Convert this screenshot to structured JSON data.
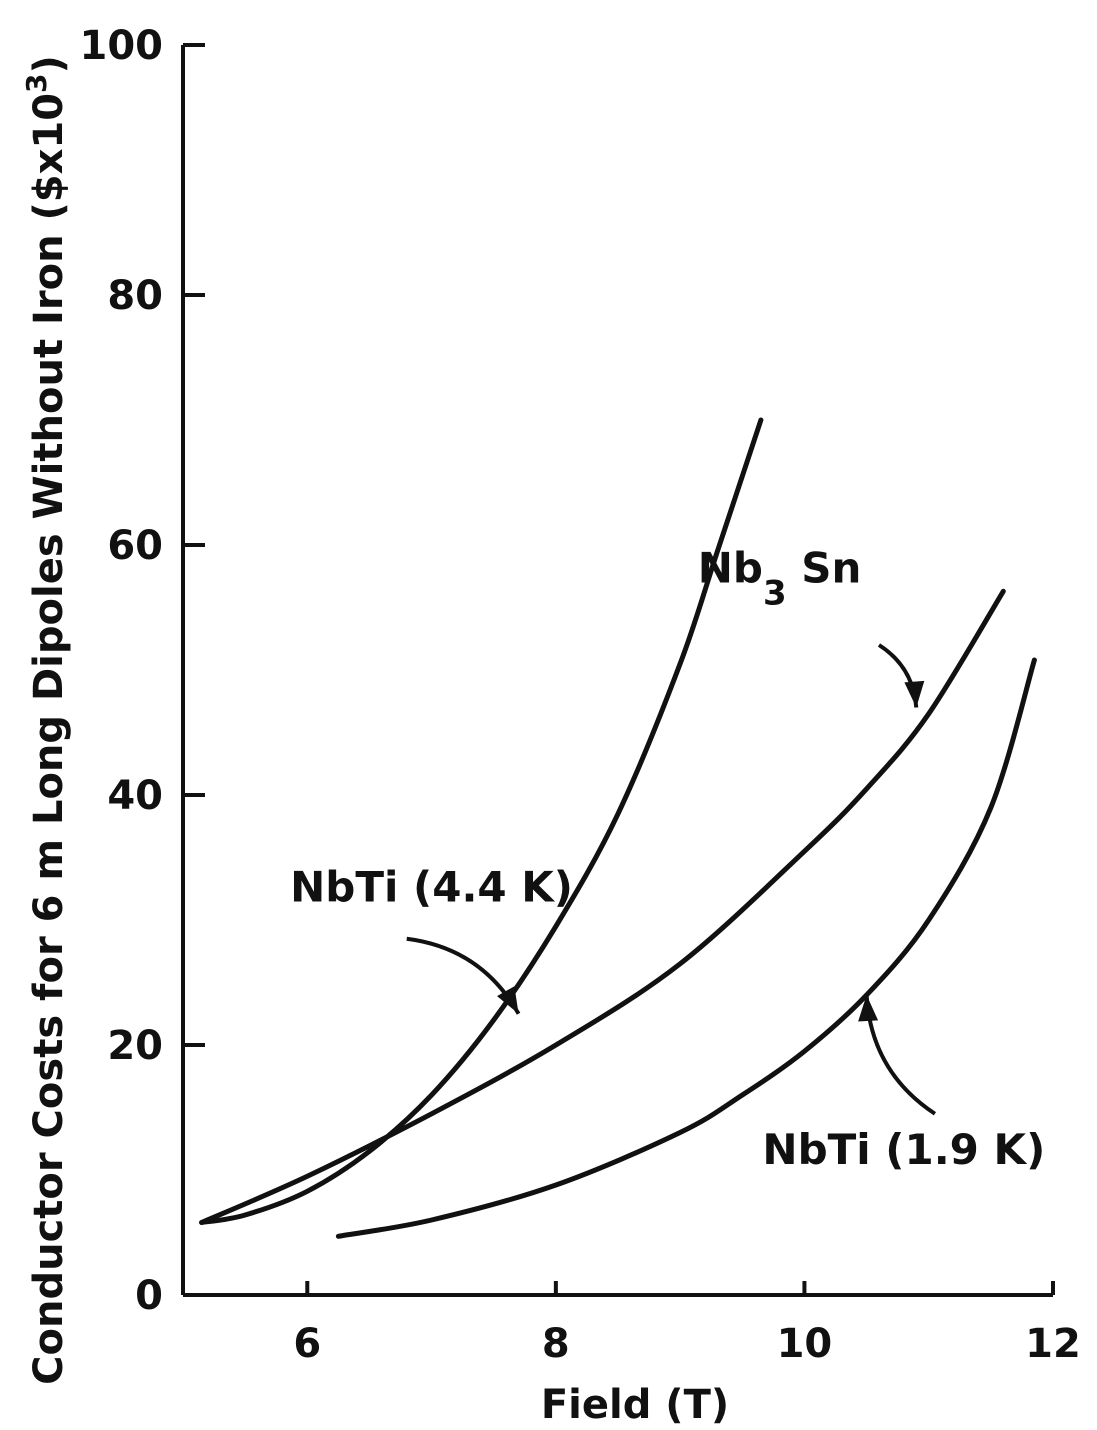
{
  "chart_data": {
    "type": "line",
    "xlabel": "Field (T)",
    "ylabel": "Conductor Costs for 6 m Long Dipoles Without Iron ($x10",
    "ylabel_superscript": "3",
    "ylabel_suffix": ")",
    "xlim": [
      5,
      12
    ],
    "ylim": [
      0,
      100
    ],
    "x_ticks": [
      6,
      8,
      10,
      12
    ],
    "y_ticks": [
      0,
      20,
      40,
      60,
      80,
      100
    ],
    "x_tick_labels": [
      "6",
      "8",
      "10",
      "12"
    ],
    "y_tick_labels": [
      "0",
      "20",
      "40",
      "60",
      "80",
      "100"
    ],
    "grid": false,
    "series": [
      {
        "name": "NbTi (4.4 K)",
        "x": [
          5.15,
          5.5,
          6.0,
          6.5,
          7.0,
          7.5,
          8.0,
          8.5,
          9.0,
          9.3,
          9.65
        ],
        "y": [
          5.8,
          6.4,
          8.3,
          11.5,
          16.0,
          22.0,
          29.5,
          38.5,
          50.5,
          59.5,
          70.0
        ]
      },
      {
        "name": "Nb",
        "name_sub": "3",
        "name_suffix": " Sn",
        "x": [
          5.15,
          6.0,
          7.0,
          8.0,
          9.0,
          10.0,
          10.5,
          11.0,
          11.6
        ],
        "y": [
          5.8,
          9.5,
          14.5,
          20.0,
          26.5,
          35.5,
          40.5,
          46.5,
          56.3
        ]
      },
      {
        "name": "NbTi (1.9 K)",
        "x": [
          6.25,
          7.0,
          8.0,
          9.0,
          9.5,
          10.0,
          10.5,
          11.0,
          11.5,
          11.85
        ],
        "y": [
          4.7,
          6.0,
          8.8,
          13.0,
          16.0,
          19.5,
          24.0,
          30.0,
          39.0,
          50.8
        ]
      }
    ],
    "annotations": [
      {
        "series": 0,
        "label_x": 7.0,
        "label_y": 31.5,
        "arrow_from": [
          6.8,
          28.5
        ],
        "arrow_to": [
          7.7,
          22.5
        ]
      },
      {
        "series": 1,
        "label_x": 9.8,
        "label_y": 57.0,
        "arrow_from": [
          10.6,
          52.0
        ],
        "arrow_to": [
          10.9,
          47.0
        ]
      },
      {
        "series": 2,
        "label_x": 10.8,
        "label_y": 10.5,
        "arrow_from": [
          11.05,
          14.5
        ],
        "arrow_to": [
          10.5,
          24.0
        ]
      }
    ]
  }
}
